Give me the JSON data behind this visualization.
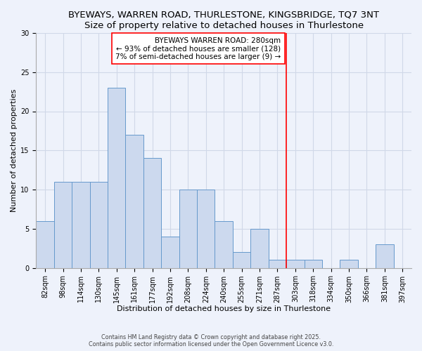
{
  "title": "BYEWAYS, WARREN ROAD, THURLESTONE, KINGSBRIDGE, TQ7 3NT",
  "subtitle": "Size of property relative to detached houses in Thurlestone",
  "xlabel": "Distribution of detached houses by size in Thurlestone",
  "ylabel": "Number of detached properties",
  "bar_color": "#ccd9ee",
  "bar_edge_color": "#6699cc",
  "categories": [
    "82sqm",
    "98sqm",
    "114sqm",
    "130sqm",
    "145sqm",
    "161sqm",
    "177sqm",
    "192sqm",
    "208sqm",
    "224sqm",
    "240sqm",
    "255sqm",
    "271sqm",
    "287sqm",
    "303sqm",
    "318sqm",
    "334sqm",
    "350sqm",
    "366sqm",
    "381sqm",
    "397sqm"
  ],
  "values": [
    6,
    11,
    11,
    11,
    23,
    17,
    14,
    4,
    10,
    10,
    6,
    2,
    5,
    1,
    1,
    1,
    0,
    1,
    0,
    3,
    0
  ],
  "ylim": [
    0,
    30
  ],
  "yticks": [
    0,
    5,
    10,
    15,
    20,
    25,
    30
  ],
  "vline_x_index": 13.5,
  "vline_label": "BYEWAYS WARREN ROAD: 280sqm",
  "annotation_line1": "← 93% of detached houses are smaller (128)",
  "annotation_line2": "7% of semi-detached houses are larger (9) →",
  "footer_line1": "Contains HM Land Registry data © Crown copyright and database right 2025.",
  "footer_line2": "Contains public sector information licensed under the Open Government Licence v3.0.",
  "bg_color": "#eef2fb",
  "grid_color": "#d0d8e8",
  "title_fontsize": 9.5,
  "subtitle_fontsize": 8.5,
  "axis_label_fontsize": 8,
  "tick_fontsize": 7
}
